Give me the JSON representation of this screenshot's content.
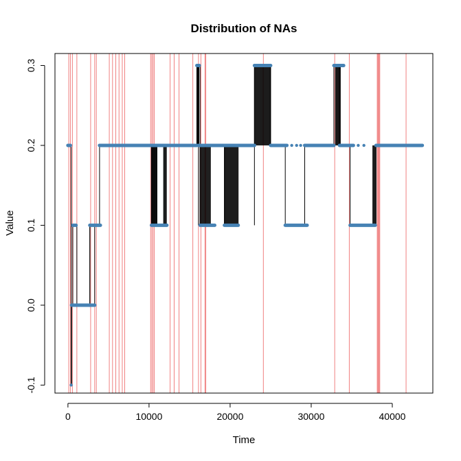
{
  "chart_data": {
    "type": "line",
    "title": "Distribution of NAs",
    "xlabel": "Time",
    "ylabel": "Value",
    "xlim": [
      -1600,
      45000
    ],
    "ylim": [
      -0.11,
      0.315
    ],
    "x_ticks": [
      0,
      10000,
      20000,
      30000,
      40000
    ],
    "x_tick_labels": [
      "0",
      "10000",
      "20000",
      "30000",
      "40000"
    ],
    "y_ticks": [
      -0.1,
      0.0,
      0.1,
      0.2,
      0.3
    ],
    "y_tick_labels": [
      "-0.1",
      "0.0",
      "0.1",
      "0.2",
      "0.3"
    ],
    "grid": false,
    "series": [
      {
        "line_color": "#000000",
        "point_color": "#4682B4",
        "segments": [
          {
            "x": [
              0,
              300
            ],
            "y": 0.2
          },
          {
            "x": [
              400,
              400
            ],
            "y": -0.1
          },
          {
            "x": [
              450,
              1100
            ],
            "y": 0.0
          },
          {
            "x": [
              600,
              1000
            ],
            "y": 0.1
          },
          {
            "x": [
              1100,
              2700
            ],
            "y": 0.0
          },
          {
            "x": [
              2700,
              3300
            ],
            "y": 0.1
          },
          {
            "x": [
              2700,
              3300
            ],
            "y": 0.0
          },
          {
            "x": [
              3300,
              4000
            ],
            "y": 0.1
          },
          {
            "x": [
              3900,
              10300
            ],
            "y": 0.2
          },
          {
            "x": [
              10300,
              12200
            ],
            "y": 0.1
          },
          {
            "x": [
              10300,
              15900
            ],
            "y": 0.2
          },
          {
            "x": [
              15900,
              16200
            ],
            "y": 0.3
          },
          {
            "x": [
              16300,
              18100
            ],
            "y": 0.1
          },
          {
            "x": [
              16100,
              23000
            ],
            "y": 0.2
          },
          {
            "x": [
              19300,
              21000
            ],
            "y": 0.1
          },
          {
            "x": [
              23000,
              25000
            ],
            "y": 0.3
          },
          {
            "x": [
              25000,
              27000
            ],
            "y": 0.2
          },
          {
            "x": [
              26800,
              29500
            ],
            "y": 0.1
          },
          {
            "x": [
              29200,
              32800
            ],
            "y": 0.2
          },
          {
            "x": [
              32800,
              34000
            ],
            "y": 0.3
          },
          {
            "x": [
              33500,
              35200
            ],
            "y": 0.2
          },
          {
            "x": [
              34800,
              37900
            ],
            "y": 0.1
          },
          {
            "x": [
              38000,
              43700
            ],
            "y": 0.2
          }
        ],
        "dense_blocks": [
          {
            "x": [
              10300,
              11000
            ],
            "y": [
              0.1,
              0.2
            ]
          },
          {
            "x": [
              11800,
              12200
            ],
            "y": [
              0.1,
              0.2
            ]
          },
          {
            "x": [
              15900,
              16200
            ],
            "y": [
              0.2,
              0.3
            ]
          },
          {
            "x": [
              16300,
              17600
            ],
            "y": [
              0.1,
              0.2
            ]
          },
          {
            "x": [
              19300,
              21000
            ],
            "y": [
              0.1,
              0.2
            ]
          },
          {
            "x": [
              23000,
              25000
            ],
            "y": [
              0.2,
              0.3
            ]
          },
          {
            "x": [
              33000,
              33600
            ],
            "y": [
              0.2,
              0.3
            ]
          },
          {
            "x": [
              37600,
              38000
            ],
            "y": [
              0.1,
              0.2
            ]
          }
        ],
        "isolated_points": [
          {
            "x": 27600,
            "y": 0.2
          },
          {
            "x": 28200,
            "y": 0.2
          },
          {
            "x": 28700,
            "y": 0.2
          },
          {
            "x": 35800,
            "y": 0.2
          },
          {
            "x": 36500,
            "y": 0.2
          }
        ]
      }
    ],
    "na_markers": {
      "color": "#F08080",
      "x": [
        100,
        300,
        550,
        1100,
        2800,
        3300,
        3500,
        5100,
        5500,
        5900,
        6300,
        6700,
        7000,
        10200,
        10350,
        10500,
        10650,
        12600,
        13100,
        13700,
        15400,
        16100,
        16400,
        16900,
        17000,
        24100,
        32900,
        34700,
        41700
      ],
      "band": [
        38100,
        38500
      ]
    }
  }
}
